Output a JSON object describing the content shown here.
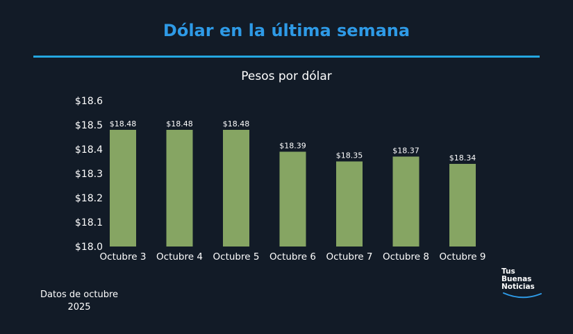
{
  "header": {
    "title": "Dólar en la última semana"
  },
  "chart_data": {
    "type": "bar",
    "title": "Pesos por dólar",
    "categories": [
      "Octubre 3",
      "Octubre 4",
      "Octubre 5",
      "Octubre 6",
      "Octubre 7",
      "Octubre 8",
      "Octubre 9"
    ],
    "values": [
      18.48,
      18.48,
      18.48,
      18.39,
      18.35,
      18.37,
      18.34
    ],
    "value_labels": [
      "$18.48",
      "$18.48",
      "$18.48",
      "$18.39",
      "$18.35",
      "$18.37",
      "$18.34"
    ],
    "ylim": [
      18.0,
      18.6
    ],
    "yticks": [
      18.0,
      18.1,
      18.2,
      18.3,
      18.4,
      18.5,
      18.6
    ],
    "ytick_labels": [
      "$18.0",
      "$18.1",
      "$18.2",
      "$18.3",
      "$18.4",
      "$18.5",
      "$18.6"
    ],
    "bar_color": "#86a563",
    "grid": false,
    "legend": "none"
  },
  "footnote": {
    "line1": "Datos de octubre",
    "line2": "2025"
  },
  "logo": {
    "line1": "Tus",
    "line2": "Buenas",
    "line3": "Noticias",
    "accent": "#2e9ae6"
  }
}
